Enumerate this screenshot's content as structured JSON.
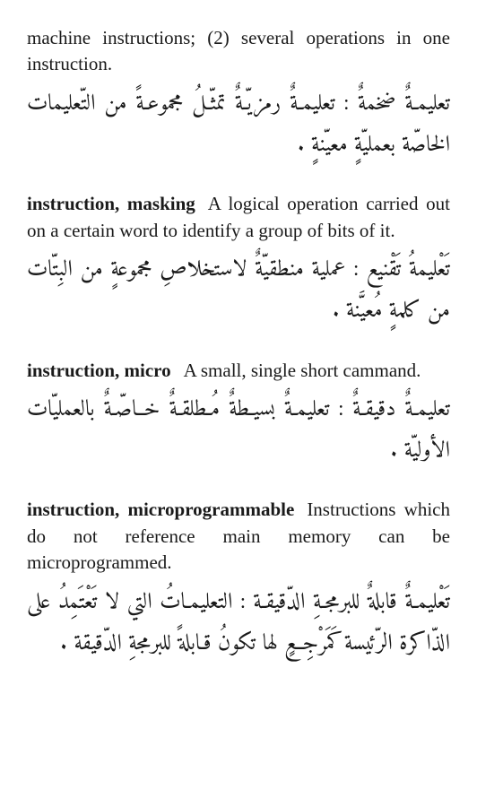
{
  "entries": [
    {
      "en_term": "",
      "en_def": "machine instructions; (2) several opera­tions in one instruction.",
      "ar": "تعليمـةٌ ضخمةٌ : تعليمـةٌ رمزيّـةٌ تمثّـلُ مجموعـةً من التّعليمات الخاصّة بعمليّةٍ معيّنةٍ ."
    },
    {
      "en_term": "instruction, masking",
      "en_def": "A logical opera­tion carried out on a certain word to iden­tify a group of bits of it.",
      "ar": "تَعْليمةُ تَقْنيع : عملية منطقيّةٌ لاستخلاصِ مجموعةٍ من البِتّات من كلمةٍ مُعيَّنة ."
    },
    {
      "en_term": "instruction, micro",
      "en_def": "A small, single short cammand.",
      "ar": "تعليمـةٌ دقيقـةٌ : تعليمـةٌ بسيـطةٌ مُـطلقـةٌ خــاصّـةٌ بالعمليّات الأوليّة ."
    },
    {
      "en_term": "instruction, microprogrammable",
      "en_def": "In­structions which do not reference main memory can be microprogrammed.",
      "ar": "تَعْليمـةٌ قابلةٌ للبرمجـةِ الدّقيقـة : التعليمـاتُ التي لا تَعْتَمِدُ على الذّاكرة الرّئيسة كَمَرْجِعٍ لها تكونُ قـابلةً للبرمجةِ الدّقيقة ."
    }
  ]
}
